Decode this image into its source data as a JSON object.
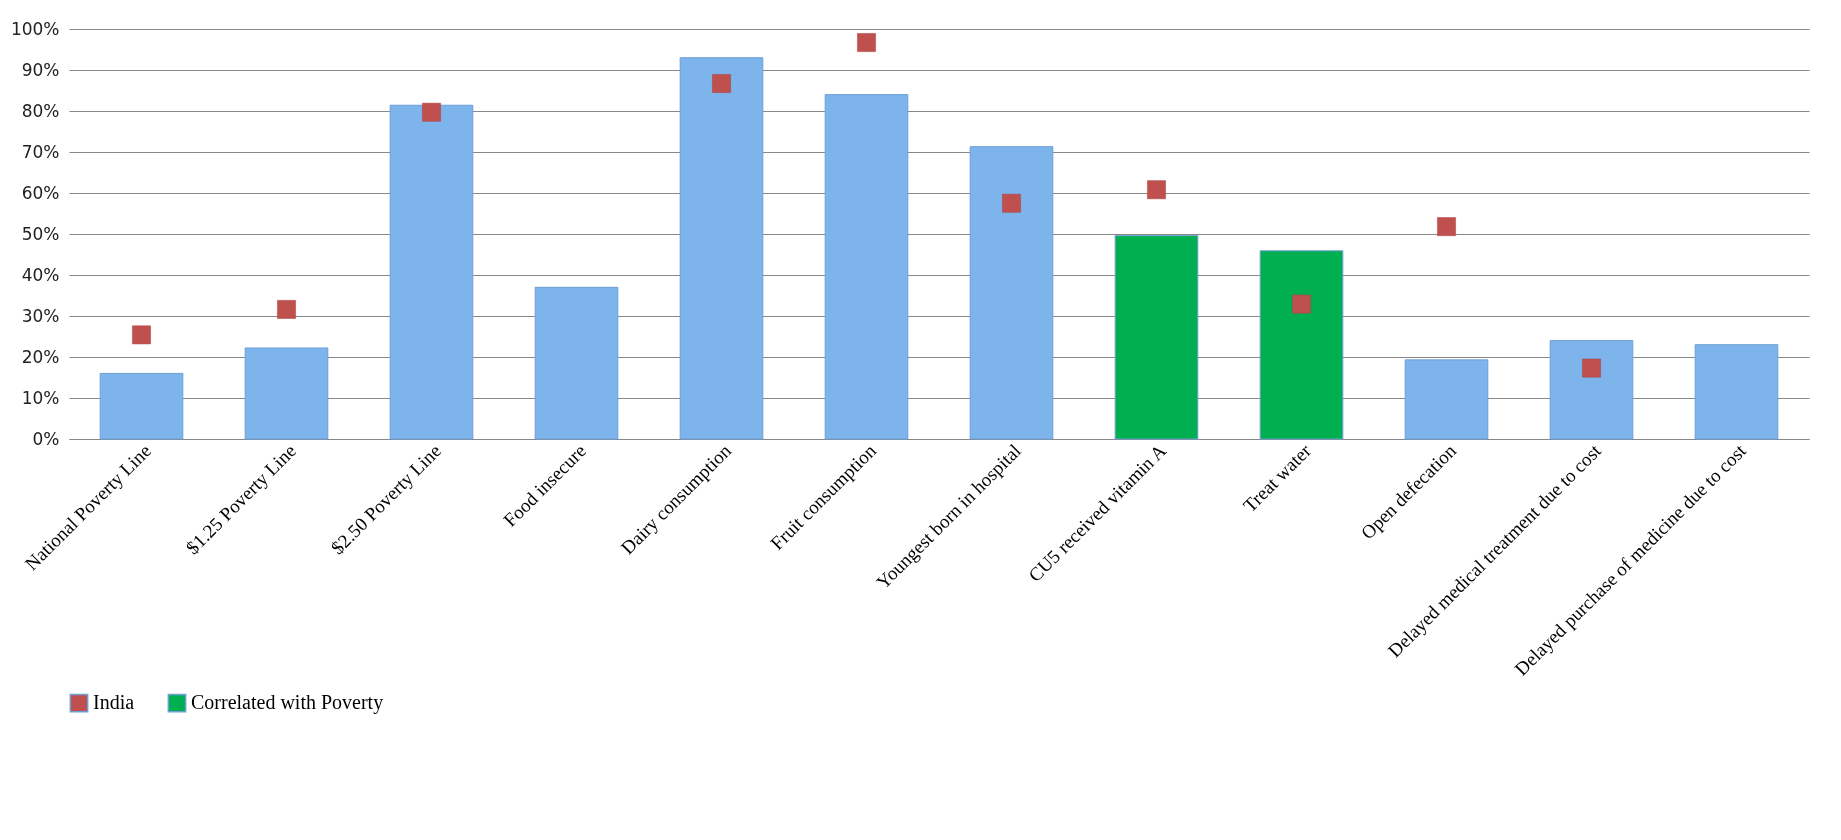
{
  "chart_data": {
    "type": "bar",
    "stacked": true,
    "categories": [
      "National Poverty Line",
      "$1.25 Poverty Line",
      "$2.50 Poverty Line",
      "Food insecure",
      "Dairy consumption",
      "Fruit consumption",
      "Youngest born in hospital",
      "CU5 received vitamin A",
      "Treat water",
      "Open defecation",
      "Delayed medical treatment  due to cost",
      "Delayed purchase of  medicine due to cost"
    ],
    "series": [
      {
        "color": "#7eb4ec",
        "values": [
          16,
          22.2,
          81.4,
          37,
          93,
          84,
          71.3,
          null,
          null,
          19.3,
          24,
          23
        ]
      },
      {
        "name": "India",
        "type": "scatter",
        "marker": "square",
        "color": "#c0504d",
        "values": [
          25.4,
          31.6,
          79.7,
          null,
          86.7,
          96.7,
          57.5,
          60.8,
          32.9,
          51.8,
          17.3,
          null
        ]
      },
      {
        "name": "Correlated with Poverty",
        "color": "#00b050",
        "values": [
          null,
          null,
          null,
          null,
          null,
          null,
          null,
          49.6,
          45.9,
          null,
          null,
          null
        ]
      }
    ],
    "ylim": [
      0,
      100
    ],
    "yticks": [
      {
        "value": 0,
        "label": "0%"
      },
      {
        "value": 10,
        "label": "10%"
      },
      {
        "value": 20,
        "label": "20%"
      },
      {
        "value": 30,
        "label": "30%"
      },
      {
        "value": 40,
        "label": "40%"
      },
      {
        "value": 50,
        "label": "50%"
      },
      {
        "value": 60,
        "label": "60%"
      },
      {
        "value": 70,
        "label": "70%"
      },
      {
        "value": 80,
        "label": "80%"
      },
      {
        "value": 90,
        "label": "90%"
      },
      {
        "value": 100,
        "label": "100%"
      }
    ],
    "grid": "y",
    "legend": "bottom"
  }
}
